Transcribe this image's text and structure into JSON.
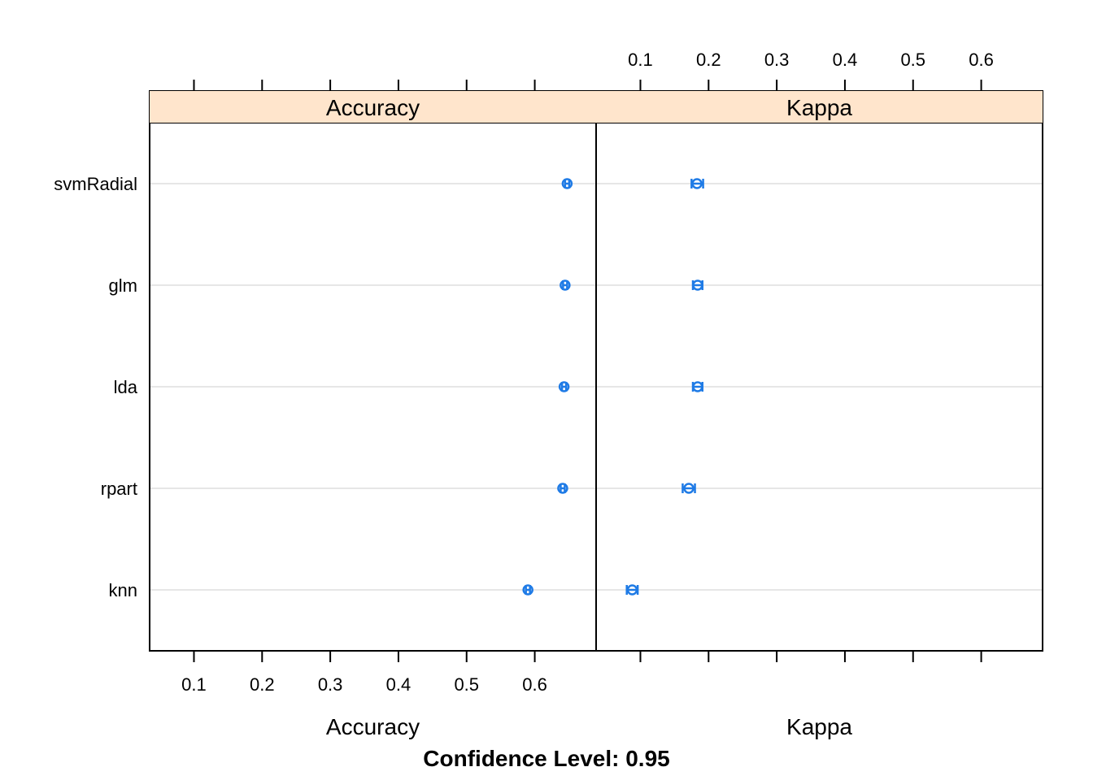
{
  "chart_data": {
    "type": "dotplot",
    "title": "",
    "footer": "Confidence Level: 0.95",
    "categories": [
      "svmRadial",
      "glm",
      "lda",
      "rpart",
      "knn"
    ],
    "xlim": [
      0.035,
      0.69
    ],
    "ticks": [
      0.1,
      0.2,
      0.3,
      0.4,
      0.5,
      0.6
    ],
    "tick_labels": [
      "0.1",
      "0.2",
      "0.3",
      "0.4",
      "0.5",
      "0.6"
    ],
    "grid": true,
    "colors": {
      "strip_bg": "#ffe5cc",
      "point": "#1f7be6",
      "grid": "#e6e6e6"
    },
    "panels": [
      {
        "name": "Accuracy",
        "xlabel": "Accuracy",
        "points": [
          {
            "model": "svmRadial",
            "value": 0.6475,
            "lower": 0.6445,
            "upper": 0.6505
          },
          {
            "model": "glm",
            "value": 0.6445,
            "lower": 0.6415,
            "upper": 0.6475
          },
          {
            "model": "lda",
            "value": 0.643,
            "lower": 0.64,
            "upper": 0.646
          },
          {
            "model": "rpart",
            "value": 0.641,
            "lower": 0.638,
            "upper": 0.644
          },
          {
            "model": "knn",
            "value": 0.59,
            "lower": 0.587,
            "upper": 0.593
          }
        ]
      },
      {
        "name": "Kappa",
        "xlabel": "Kappa",
        "points": [
          {
            "model": "svmRadial",
            "value": 0.183,
            "lower": 0.175,
            "upper": 0.192
          },
          {
            "model": "glm",
            "value": 0.184,
            "lower": 0.177,
            "upper": 0.191
          },
          {
            "model": "lda",
            "value": 0.184,
            "lower": 0.177,
            "upper": 0.191
          },
          {
            "model": "rpart",
            "value": 0.171,
            "lower": 0.162,
            "upper": 0.18
          },
          {
            "model": "knn",
            "value": 0.088,
            "lower": 0.08,
            "upper": 0.096
          }
        ]
      }
    ]
  }
}
